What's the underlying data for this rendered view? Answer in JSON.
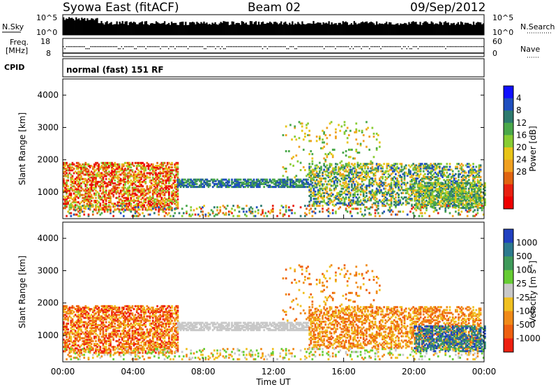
{
  "header": {
    "station": "Syowa East (fitACF)",
    "beam": "Beam 02",
    "date": "09/Sep/2012",
    "cpid": "normal (fast) 151 RF"
  },
  "strip_labels": {
    "nsky": "N.Sky",
    "nsearch": "N.Search",
    "freq_line1": "Freq.",
    "freq_line2": "[MHz]",
    "nave": "Nave",
    "cpid": "CPID",
    "top_tick_high": "10^5",
    "top_tick_low": "10^0",
    "freq_ticks": [
      "18",
      "8"
    ],
    "nave_ticks": [
      "60",
      "0"
    ]
  },
  "chart_data": [
    {
      "type": "heatmap",
      "title": "",
      "xlabel": "Time UT",
      "ylabel": "Slant Range [km]",
      "xlim_hours": [
        0,
        24
      ],
      "ylim": [
        180,
        4500
      ],
      "x_ticks": [
        "00:00",
        "04:00",
        "08:00",
        "12:00",
        "16:00",
        "20:00",
        "00:00"
      ],
      "y_ticks": [
        1000,
        2000,
        3000,
        4000
      ],
      "colorbar": {
        "label": "Power [dB]",
        "tick_labels": [
          "4",
          "8",
          "12",
          "16",
          "20",
          "24",
          "28"
        ],
        "colors": [
          "#1010ff",
          "#1f4fbf",
          "#2d7a6e",
          "#4aa84a",
          "#88cc33",
          "#e8c418",
          "#f0a020",
          "#e06410",
          "#e82010",
          "#ee0000"
        ]
      }
    },
    {
      "type": "heatmap",
      "title": "",
      "xlabel": "Time UT",
      "ylabel": "Slant Range [km]",
      "xlim_hours": [
        0,
        24
      ],
      "ylim": [
        180,
        4500
      ],
      "x_ticks": [
        "00:00",
        "04:00",
        "08:00",
        "12:00",
        "16:00",
        "20:00",
        "00:00"
      ],
      "y_ticks": [
        1000,
        2000,
        3000,
        4000
      ],
      "colorbar": {
        "label": "Velocity [m s",
        "label_sup": "-1",
        "label_end": "]",
        "tick_labels": [
          "1000",
          "500",
          "100",
          "25",
          "-25",
          "-100",
          "-500",
          "-1000"
        ],
        "colors": [
          "#2040c0",
          "#2d7a8e",
          "#3f9a5a",
          "#66cc33",
          "#c8c8c8",
          "#f0c020",
          "#f08a18",
          "#ee6010",
          "#ee2010"
        ]
      }
    }
  ]
}
